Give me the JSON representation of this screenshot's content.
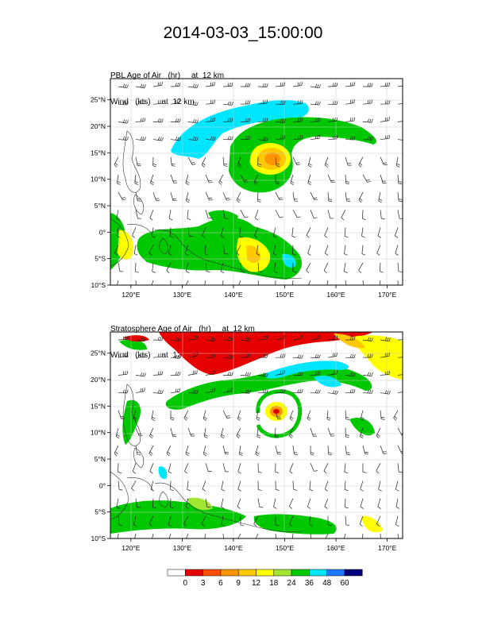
{
  "title": "2014-03-03_15:00:00",
  "panels": [
    {
      "id": "pbl",
      "field_label": "PBL Age of Air",
      "field_units": "(hr)",
      "level_label": "at  12 km",
      "wind_label": "Wind",
      "wind_units": "(kts)",
      "wind_level": "at  12 km"
    },
    {
      "id": "strat",
      "field_label": "Stratosphere Age of Air",
      "field_units": "(hr)",
      "level_label": "at  12 km",
      "wind_label": "Wind",
      "wind_units": "(kts)",
      "wind_level": "at  12 km"
    }
  ],
  "map_extent": {
    "lon_min": 116,
    "lon_max": 173,
    "lat_min": -10,
    "lat_max": 29
  },
  "lon_ticks": [
    {
      "value": 120,
      "label": "120°E"
    },
    {
      "value": 130,
      "label": "130°E"
    },
    {
      "value": 140,
      "label": "140°E"
    },
    {
      "value": 150,
      "label": "150°E"
    },
    {
      "value": 160,
      "label": "160°E"
    },
    {
      "value": 170,
      "label": "170°E"
    }
  ],
  "lat_ticks": [
    {
      "value": 25,
      "label": "25°N"
    },
    {
      "value": 20,
      "label": "20°N"
    },
    {
      "value": 15,
      "label": "15°N"
    },
    {
      "value": 10,
      "label": "10°N"
    },
    {
      "value": 5,
      "label": "5°N"
    },
    {
      "value": 0,
      "label": "0°"
    },
    {
      "value": -5,
      "label": "5°S"
    },
    {
      "value": -10,
      "label": "10°S"
    }
  ],
  "colorbar": {
    "levels": [
      "0",
      "3",
      "6",
      "9",
      "12",
      "18",
      "24",
      "36",
      "48",
      "60"
    ],
    "colors": [
      "#ffffff",
      "#e60000",
      "#ff5000",
      "#ff9600",
      "#ffc800",
      "#ffff00",
      "#a0e632",
      "#00c800",
      "#00e6ff",
      "#1e78ff",
      "#00007a"
    ]
  }
}
